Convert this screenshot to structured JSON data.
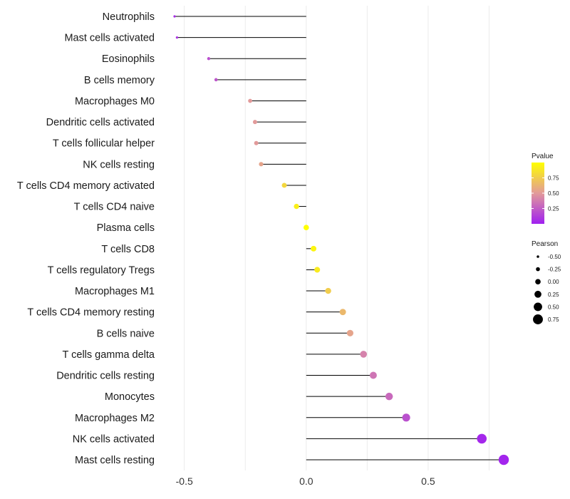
{
  "chart_data": {
    "type": "lollipop",
    "categories": [
      "Neutrophils",
      "Mast cells activated",
      "Eosinophils",
      "B cells memory",
      "Macrophages M0",
      "Dendritic cells activated",
      "T cells follicular helper",
      "NK cells resting",
      "T cells CD4 memory activated",
      "T cells CD4 naive",
      "Plasma cells",
      "T cells CD8",
      "T cells regulatory  Tregs",
      "Macrophages M1",
      "T cells CD4 memory resting",
      "B cells naive",
      "T cells gamma delta",
      "Dendritic cells resting",
      "Monocytes",
      "Macrophages M2",
      "NK cells activated",
      "Mast cells resting"
    ],
    "pearson": [
      -0.54,
      -0.53,
      -0.4,
      -0.37,
      -0.23,
      -0.21,
      -0.205,
      -0.185,
      -0.09,
      -0.04,
      0.0,
      0.03,
      0.045,
      0.09,
      0.15,
      0.18,
      0.235,
      0.275,
      0.34,
      0.41,
      0.72,
      0.81
    ],
    "pvalue": [
      0.05,
      0.08,
      0.2,
      0.22,
      0.5,
      0.5,
      0.5,
      0.55,
      0.8,
      0.92,
      1.0,
      0.95,
      0.9,
      0.75,
      0.65,
      0.55,
      0.4,
      0.35,
      0.3,
      0.2,
      0.03,
      0.02
    ],
    "xlim": [
      -0.54,
      0.81
    ],
    "x_ticks": [
      -0.5,
      0.0,
      0.5
    ],
    "x_tick_labels": [
      "-0.5",
      "0.0",
      "0.5"
    ],
    "xlabel": "",
    "ylabel": "",
    "grid": true,
    "color_legend": {
      "title": "Pvalue",
      "ticks": [
        0.25,
        0.5,
        0.75
      ],
      "tick_labels": [
        "0.25",
        "0.50",
        "0.75"
      ],
      "range": [
        0.0,
        1.0
      ],
      "low_color": "#a020f0",
      "mid_color": "#e29a9a",
      "high_color": "#ffff00"
    },
    "size_legend": {
      "title": "Pearson",
      "values": [
        -0.5,
        -0.25,
        0.0,
        0.25,
        0.5,
        0.75
      ],
      "labels": [
        "-0.50",
        "-0.25",
        "0.00",
        "0.25",
        "0.50",
        "0.75"
      ]
    },
    "stem_color": "#000000",
    "legend_placement": "right"
  }
}
